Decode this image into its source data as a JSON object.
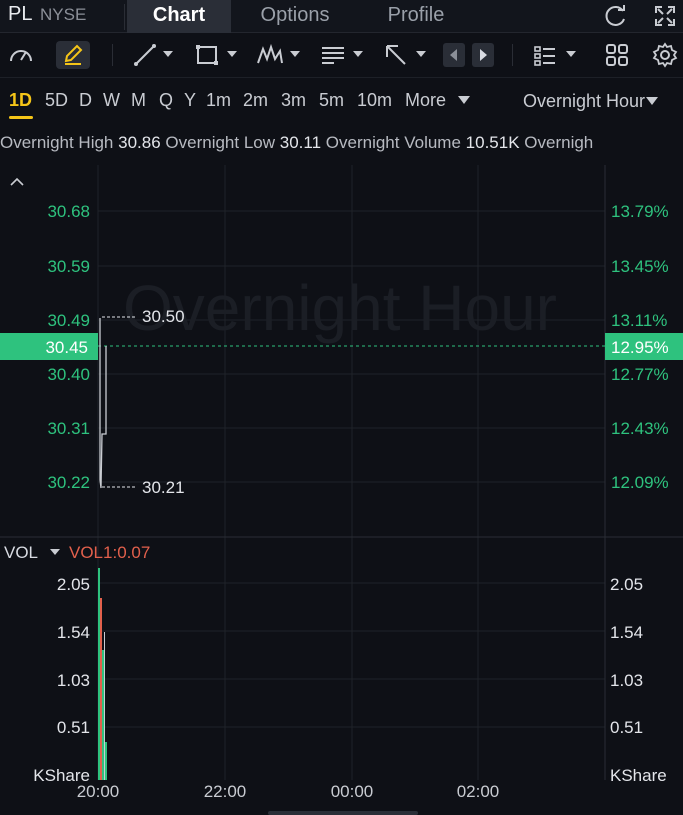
{
  "header": {
    "ticker": "PL",
    "exchange": "NYSE",
    "tabs": [
      "Chart",
      "Options",
      "Profile"
    ],
    "active_tab": "Chart",
    "icons": [
      "refresh-icon",
      "fullscreen-icon"
    ]
  },
  "toolbar": {
    "icons": [
      "gauge-icon",
      "draw-pencil-icon",
      "trend-line-icon",
      "rectangle-icon",
      "pattern-icon",
      "text-note-icon",
      "arrow-icon",
      "scroll-left-icon",
      "scroll-right-icon",
      "list-icon",
      "grid-icon",
      "settings-icon"
    ]
  },
  "periods": {
    "items": [
      "1D",
      "5D",
      "D",
      "W",
      "M",
      "Q",
      "Y",
      "1m",
      "2m",
      "3m",
      "5m",
      "10m",
      "More"
    ],
    "active": "1D",
    "session_label": "Overnight Hour"
  },
  "stats": {
    "high_label": "Overnight High",
    "high_value": "30.86",
    "low_label": "Overnight Low",
    "low_value": "30.11",
    "volume_label": "Overnight Volume",
    "volume_value": "10.51K",
    "trailing_label": "Overnigh"
  },
  "price_chart": {
    "watermark": "Overnight Hour",
    "left_ticks": [
      "30.68",
      "30.59",
      "30.49",
      "30.40",
      "30.31",
      "30.22"
    ],
    "right_ticks": [
      "13.79%",
      "13.45%",
      "13.11%",
      "12.77%",
      "12.43%",
      "12.09%"
    ],
    "current_price": "30.45",
    "current_pct": "12.95%",
    "high_annotation": "30.50",
    "low_annotation": "30.21",
    "colors": {
      "up": "#2ec27e",
      "grid": "#22252c",
      "axis_text": "#2ec27e"
    }
  },
  "volume_chart": {
    "label": "VOL",
    "indicator": "VOL1:0.07",
    "left_ticks": [
      "2.05",
      "1.54",
      "1.03",
      "0.51"
    ],
    "right_ticks": [
      "2.05",
      "1.54",
      "1.03",
      "0.51"
    ],
    "unit": "KShare",
    "colors": {
      "up": "#2ec27e",
      "down": "#e2604c"
    }
  },
  "time_axis": [
    "20:00",
    "22:00",
    "00:00",
    "02:00"
  ]
}
